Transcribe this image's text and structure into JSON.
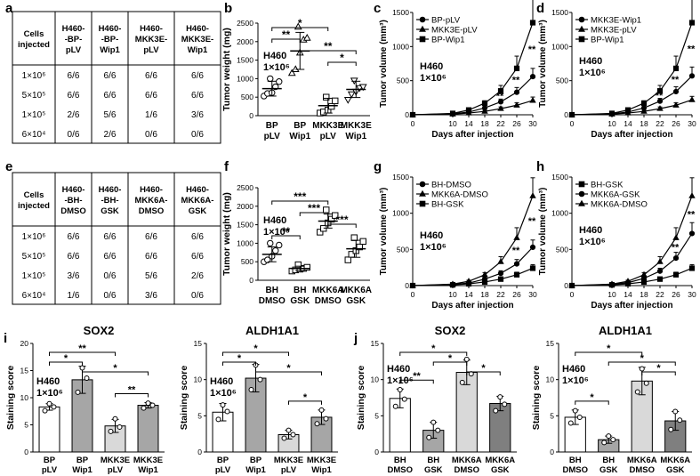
{
  "panel_letters": [
    "a",
    "b",
    "c",
    "d",
    "e",
    "f",
    "g",
    "h",
    "i",
    "j"
  ],
  "colors": {
    "axis": "#000000",
    "bar_white": "#ffffff",
    "bar_dark": "#a6a6a6",
    "bar_light": "#d9d9d9",
    "bar_mid": "#7f7f7f"
  },
  "chart_data": [
    {
      "panel": "a",
      "type": "table",
      "columns": [
        "Cells injected",
        "H460-BP-pLV",
        "H460-BP-Wip1",
        "H460-MKK3E-pLV",
        "H460-MKK3E-Wip1"
      ],
      "rows": [
        [
          "1×10⁶",
          "6/6",
          "6/6",
          "6/6",
          "6/6"
        ],
        [
          "5×10⁵",
          "6/6",
          "6/6",
          "6/6",
          "6/6"
        ],
        [
          "1×10⁵",
          "2/6",
          "5/6",
          "1/6",
          "3/6"
        ],
        [
          "6×10⁴",
          "0/6",
          "2/6",
          "0/6",
          "0/6"
        ]
      ]
    },
    {
      "panel": "b",
      "type": "scatter",
      "ylabel": "Tumor weight (mg)",
      "ylim": [
        0,
        2500
      ],
      "yticks": [
        0,
        500,
        1000,
        1500,
        2000,
        2500
      ],
      "annotation": [
        "H460",
        "1×10⁶"
      ],
      "categories": [
        [
          "BP",
          "pLV"
        ],
        [
          "BP",
          "Wip1"
        ],
        [
          "MKK3E",
          "pLV"
        ],
        [
          "MKK3E",
          "Wip1"
        ]
      ],
      "markers": [
        "circle",
        "triangle",
        "square",
        "triangle-down"
      ],
      "points": [
        [
          530,
          600,
          620,
          780,
          920,
          1000
        ],
        [
          1150,
          1250,
          1700,
          2050,
          2100,
          2400
        ],
        [
          70,
          100,
          150,
          250,
          400,
          500
        ],
        [
          430,
          580,
          650,
          750,
          780,
          950
        ]
      ],
      "means": [
        730,
        1750,
        270,
        710
      ],
      "sd": [
        200,
        500,
        200,
        220
      ],
      "brackets": [
        {
          "from": 0,
          "to": 1,
          "label": "**",
          "level": 2
        },
        {
          "from": 0,
          "to": 2,
          "label": "*",
          "level": 3
        },
        {
          "from": 1,
          "to": 3,
          "label": "**",
          "level": 1
        },
        {
          "from": 2,
          "to": 3,
          "label": "*",
          "level": 0
        }
      ]
    },
    {
      "panel": "c",
      "type": "line",
      "ylabel": "Tumor volume (mm³)",
      "xlabel": "Days after injection",
      "x": [
        0,
        10,
        14,
        18,
        22,
        26,
        30
      ],
      "ylim": [
        0,
        1500
      ],
      "yticks": [
        0,
        500,
        1000,
        1500
      ],
      "annotation": [
        "H460",
        "1×10⁶"
      ],
      "series": [
        {
          "name": "BP-pLV",
          "marker": "circle",
          "values": [
            0,
            15,
            40,
            100,
            190,
            330,
            560
          ],
          "err": [
            0,
            5,
            10,
            20,
            40,
            70,
            120
          ]
        },
        {
          "name": "MKK3E-pLV",
          "marker": "triangle",
          "values": [
            0,
            10,
            25,
            50,
            90,
            140,
            210
          ],
          "err": [
            0,
            5,
            8,
            15,
            25,
            35,
            50
          ]
        },
        {
          "name": "BP-Wip1",
          "marker": "square",
          "values": [
            0,
            20,
            70,
            170,
            350,
            680,
            1350
          ],
          "err": [
            0,
            5,
            15,
            35,
            80,
            180,
            450
          ]
        }
      ],
      "sig": [
        {
          "x": 22,
          "label": "**"
        },
        {
          "x": 26,
          "label": "**"
        },
        {
          "x": 30,
          "label": "**"
        }
      ]
    },
    {
      "panel": "d",
      "type": "line",
      "ylabel": "Tumor volume (mm³)",
      "xlabel": "Days after injection",
      "x": [
        0,
        10,
        14,
        18,
        22,
        26,
        30
      ],
      "ylim": [
        0,
        1500
      ],
      "yticks": [
        0,
        500,
        1000,
        1500
      ],
      "annotation": [
        "H460",
        "1×10⁶"
      ],
      "series": [
        {
          "name": "MKK3E-Wip1",
          "marker": "circle",
          "values": [
            0,
            15,
            40,
            100,
            200,
            340,
            570
          ],
          "err": [
            0,
            5,
            10,
            20,
            40,
            70,
            130
          ]
        },
        {
          "name": "MKK3E-pLV",
          "marker": "triangle",
          "values": [
            0,
            10,
            25,
            50,
            90,
            140,
            220
          ],
          "err": [
            0,
            5,
            8,
            15,
            25,
            35,
            50
          ]
        },
        {
          "name": "BP-Wip1",
          "marker": "square",
          "values": [
            0,
            20,
            70,
            170,
            350,
            680,
            1350
          ],
          "err": [
            0,
            5,
            15,
            35,
            80,
            180,
            450
          ]
        }
      ],
      "sig": [
        {
          "x": 22,
          "label": "**"
        },
        {
          "x": 26,
          "label": "**"
        },
        {
          "x": 30,
          "label": "**"
        }
      ]
    },
    {
      "panel": "e",
      "type": "table",
      "columns": [
        "Cells injected",
        "H460-BH-DMSO",
        "H460-BH-GSK",
        "H460-MKK6A-DMSO",
        "H460-MKK6A-GSK"
      ],
      "rows": [
        [
          "1×10⁶",
          "6/6",
          "6/6",
          "6/6",
          "6/6"
        ],
        [
          "5×10⁵",
          "6/6",
          "6/6",
          "6/6",
          "6/6"
        ],
        [
          "1×10⁵",
          "3/6",
          "0/6",
          "5/6",
          "2/6"
        ],
        [
          "6×10⁴",
          "1/6",
          "0/6",
          "3/6",
          "0/6"
        ]
      ]
    },
    {
      "panel": "f",
      "type": "scatter",
      "ylabel": "Tumor weight (mg)",
      "ylim": [
        0,
        2500
      ],
      "yticks": [
        0,
        500,
        1000,
        1500,
        2000,
        2500
      ],
      "annotation": [
        "H460",
        "1×10⁶"
      ],
      "categories": [
        [
          "BH",
          "DMSO"
        ],
        [
          "BH",
          "GSK"
        ],
        [
          "MKK6A",
          "DMSO"
        ],
        [
          "MKK6A",
          "GSK"
        ]
      ],
      "markers": [
        "circle",
        "square",
        "square",
        "square"
      ],
      "points": [
        [
          500,
          550,
          650,
          800,
          950,
          1000
        ],
        [
          250,
          280,
          300,
          320,
          350,
          420
        ],
        [
          1300,
          1400,
          1550,
          1650,
          1750,
          1900
        ],
        [
          550,
          700,
          800,
          900,
          1050,
          1150
        ]
      ],
      "means": [
        700,
        320,
        1600,
        850
      ],
      "sd": [
        200,
        60,
        190,
        230
      ],
      "brackets": [
        {
          "from": 0,
          "to": 1,
          "label": "**",
          "level": 0
        },
        {
          "from": 0,
          "to": 2,
          "label": "***",
          "level": 3
        },
        {
          "from": 1,
          "to": 2,
          "label": "***",
          "level": 2
        },
        {
          "from": 2,
          "to": 3,
          "label": "***",
          "level": 1
        }
      ]
    },
    {
      "panel": "g",
      "type": "line",
      "ylabel": "Tumor volume (mm³)",
      "xlabel": "Days after injection",
      "x": [
        0,
        10,
        14,
        18,
        22,
        26,
        30
      ],
      "ylim": [
        0,
        1500
      ],
      "yticks": [
        0,
        500,
        1000,
        1500
      ],
      "annotation": [
        "H460",
        "1×10⁶"
      ],
      "series": [
        {
          "name": "BH-DMSO",
          "marker": "circle",
          "values": [
            0,
            15,
            35,
            90,
            170,
            300,
            530
          ],
          "err": [
            0,
            5,
            10,
            20,
            35,
            60,
            100
          ]
        },
        {
          "name": "MKK6A-DMSO",
          "marker": "triangle",
          "values": [
            0,
            20,
            60,
            150,
            330,
            660,
            1240
          ],
          "err": [
            0,
            5,
            15,
            30,
            70,
            140,
            250
          ]
        },
        {
          "name": "BH-GSK",
          "marker": "square",
          "values": [
            0,
            10,
            25,
            50,
            90,
            150,
            240
          ],
          "err": [
            0,
            5,
            8,
            15,
            25,
            35,
            50
          ]
        }
      ],
      "sig": [
        {
          "x": 26,
          "label": "**"
        },
        {
          "x": 30,
          "label": "**"
        }
      ]
    },
    {
      "panel": "h",
      "type": "line",
      "ylabel": "Tumor volume (mm³)",
      "xlabel": "Days after injection",
      "x": [
        0,
        10,
        14,
        18,
        22,
        26,
        30
      ],
      "ylim": [
        0,
        1500
      ],
      "yticks": [
        0,
        500,
        1000,
        1500
      ],
      "annotation": [
        "H460",
        "1×10⁶"
      ],
      "series": [
        {
          "name": "BH-GSK",
          "marker": "square",
          "values": [
            0,
            10,
            25,
            50,
            90,
            150,
            240
          ],
          "err": [
            0,
            5,
            8,
            15,
            25,
            35,
            50
          ]
        },
        {
          "name": "MKK6A-GSK",
          "marker": "circle",
          "values": [
            0,
            15,
            40,
            100,
            200,
            380,
            720
          ],
          "err": [
            0,
            5,
            10,
            20,
            40,
            80,
            150
          ]
        },
        {
          "name": "MKK6A-DMSO",
          "marker": "triangle",
          "values": [
            0,
            20,
            60,
            150,
            330,
            660,
            1240
          ],
          "err": [
            0,
            5,
            15,
            30,
            70,
            140,
            250
          ]
        }
      ],
      "sig": [
        {
          "x": 26,
          "label": "**"
        },
        {
          "x": 30,
          "label": "**"
        }
      ]
    },
    {
      "panel": "i",
      "type": "bar",
      "title": "SOX2",
      "ylabel": "Staining score",
      "ylim": [
        0,
        20
      ],
      "yticks": [
        0,
        5,
        10,
        15,
        20
      ],
      "annotation": [
        "H460",
        "1×10⁶"
      ],
      "categories": [
        [
          "BP",
          "pLV"
        ],
        [
          "BP",
          "Wip1"
        ],
        [
          "MKK3E",
          "pLV"
        ],
        [
          "MKK3E",
          "Wip1"
        ]
      ],
      "fills": [
        "#ffffff",
        "#a6a6a6",
        "#d9d9d9",
        "#a6a6a6"
      ],
      "values": [
        8.3,
        13.3,
        4.8,
        8.6
      ],
      "sd": [
        0.6,
        2.5,
        1.2,
        0.5
      ],
      "points": [
        [
          7.6,
          8.3,
          8.9
        ],
        [
          11.0,
          13.6,
          15.5
        ],
        [
          3.8,
          4.6,
          6.1
        ],
        [
          8.1,
          8.6,
          9.0
        ]
      ],
      "brackets": [
        {
          "from": 0,
          "to": 1,
          "label": "*",
          "level": 1
        },
        {
          "from": 0,
          "to": 2,
          "label": "**",
          "level": 2
        },
        {
          "from": 1,
          "to": 3,
          "label": "*",
          "level": 0
        },
        {
          "from": 2,
          "to": 3,
          "label": "**",
          "level": -1
        }
      ]
    },
    {
      "panel": "i",
      "type": "bar",
      "title": "ALDH1A1",
      "ylabel": "Staining score",
      "ylim": [
        0,
        15
      ],
      "yticks": [
        0,
        5,
        10,
        15
      ],
      "annotation": [
        "H460",
        "1×10⁶"
      ],
      "categories": [
        [
          "BP",
          "pLV"
        ],
        [
          "BP",
          "Wip1"
        ],
        [
          "MKK3E",
          "pLV"
        ],
        [
          "MKK3E",
          "Wip1"
        ]
      ],
      "fills": [
        "#ffffff",
        "#a6a6a6",
        "#d9d9d9",
        "#a6a6a6"
      ],
      "values": [
        5.5,
        10.2,
        2.4,
        4.8
      ],
      "sd": [
        1.2,
        1.9,
        0.6,
        1.0
      ],
      "points": [
        [
          4.5,
          5.6,
          6.5
        ],
        [
          8.6,
          10.0,
          12.0
        ],
        [
          1.9,
          2.4,
          3.0
        ],
        [
          3.9,
          4.6,
          5.8
        ]
      ],
      "brackets": [
        {
          "from": 0,
          "to": 1,
          "label": "*",
          "level": 1
        },
        {
          "from": 0,
          "to": 2,
          "label": "*",
          "level": 2
        },
        {
          "from": 1,
          "to": 3,
          "label": "*",
          "level": 0
        },
        {
          "from": 2,
          "to": 3,
          "label": "*",
          "level": -1
        }
      ]
    },
    {
      "panel": "j",
      "type": "bar",
      "title": "SOX2",
      "ylabel": "Staining score",
      "ylim": [
        0,
        15
      ],
      "yticks": [
        0,
        5,
        10,
        15
      ],
      "annotation": [
        "H460",
        "1×10⁶"
      ],
      "categories": [
        [
          "BH",
          "DMSO"
        ],
        [
          "BH",
          "GSK"
        ],
        [
          "MKK6A",
          "DMSO"
        ],
        [
          "MKK6A",
          "GSK"
        ]
      ],
      "fills": [
        "#ffffff",
        "#a6a6a6",
        "#d9d9d9",
        "#7f7f7f"
      ],
      "values": [
        7.4,
        3.0,
        11.0,
        6.7
      ],
      "sd": [
        1.3,
        1.1,
        1.7,
        1.0
      ],
      "points": [
        [
          6.3,
          7.3,
          8.6
        ],
        [
          2.0,
          3.0,
          4.1
        ],
        [
          9.6,
          10.8,
          12.8
        ],
        [
          5.7,
          6.6,
          7.6
        ]
      ],
      "brackets": [
        {
          "from": 0,
          "to": 1,
          "label": "**",
          "level": -1
        },
        {
          "from": 0,
          "to": 2,
          "label": "*",
          "level": 2
        },
        {
          "from": 1,
          "to": 2,
          "label": "*",
          "level": 1
        },
        {
          "from": 2,
          "to": 3,
          "label": "*",
          "level": 0
        }
      ]
    },
    {
      "panel": "j",
      "type": "bar",
      "title": "ALDH1A1",
      "ylabel": "Staining score",
      "ylim": [
        0,
        15
      ],
      "yticks": [
        0,
        5,
        10,
        15
      ],
      "annotation": [
        "H460",
        "1×10⁶"
      ],
      "categories": [
        [
          "BH",
          "DMSO"
        ],
        [
          "BH",
          "GSK"
        ],
        [
          "MKK6A",
          "DMSO"
        ],
        [
          "MKK6A",
          "GSK"
        ]
      ],
      "fills": [
        "#ffffff",
        "#a6a6a6",
        "#d9d9d9",
        "#7f7f7f"
      ],
      "values": [
        4.8,
        1.7,
        9.8,
        4.3
      ],
      "sd": [
        1.0,
        0.5,
        1.9,
        1.3
      ],
      "points": [
        [
          4.0,
          4.8,
          5.7
        ],
        [
          1.3,
          1.7,
          2.2
        ],
        [
          8.3,
          9.5,
          11.5
        ],
        [
          3.1,
          4.4,
          5.6
        ]
      ],
      "brackets": [
        {
          "from": 0,
          "to": 1,
          "label": "*",
          "level": -1
        },
        {
          "from": 0,
          "to": 2,
          "label": "*",
          "level": 2
        },
        {
          "from": 1,
          "to": 3,
          "label": "*",
          "level": 1
        },
        {
          "from": 2,
          "to": 3,
          "label": "*",
          "level": 0
        }
      ]
    }
  ]
}
